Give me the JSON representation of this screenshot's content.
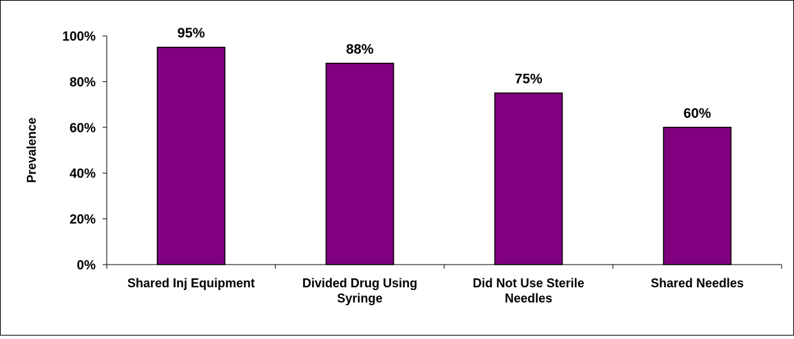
{
  "chart_data": {
    "type": "bar",
    "title": "",
    "xlabel": "",
    "ylabel": "Prevalence",
    "categories": [
      [
        "Shared Inj Equipment"
      ],
      [
        "Divided Drug Using",
        "Syringe"
      ],
      [
        "Did Not Use Sterile",
        "Needles"
      ],
      [
        "Shared Needles"
      ]
    ],
    "values": [
      95,
      88,
      75,
      60
    ],
    "value_labels": [
      "95%",
      "88%",
      "75%",
      "60%"
    ],
    "ylim": [
      0,
      100
    ],
    "yticks": [
      0,
      20,
      40,
      60,
      80,
      100
    ],
    "ytick_labels": [
      "0%",
      "20%",
      "40%",
      "60%",
      "80%",
      "100%"
    ],
    "grid": false,
    "legend": "none",
    "bar_color": "#800080",
    "bar_outline_color": "#000000"
  }
}
